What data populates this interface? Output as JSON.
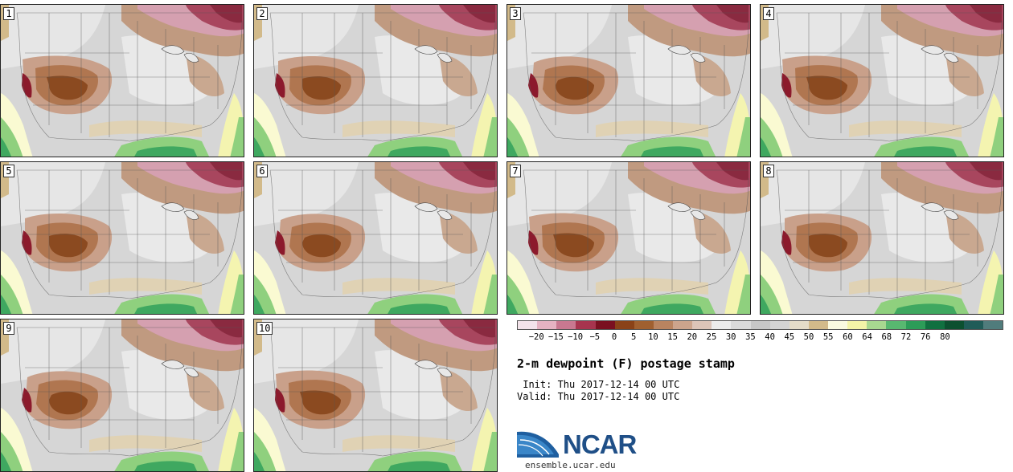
{
  "title": "2-m dewpoint (F) postage stamp",
  "init_line": " Init: Thu 2017-12-14 00 UTC",
  "valid_line": "Valid: Thu 2017-12-14 00 UTC",
  "logo_text": "NCAR",
  "site": "ensemble.ucar.edu",
  "members": [
    "1",
    "2",
    "3",
    "4",
    "5",
    "6",
    "7",
    "8",
    "9",
    "10"
  ],
  "colorbar": {
    "colors": [
      "#f3e3ea",
      "#e5b3c2",
      "#c87890",
      "#a7344e",
      "#7a1020",
      "#8a4218",
      "#a06030",
      "#b98460",
      "#cca48c",
      "#dcc4b8",
      "#ececec",
      "#dadada",
      "#c6c6c6",
      "#d4d4d4",
      "#e4dcc8",
      "#d2ba8a",
      "#fafae0",
      "#f4f4a8",
      "#a8d890",
      "#58b870",
      "#2c9c58",
      "#107040",
      "#0c5030",
      "#205c58",
      "#507c7c"
    ],
    "labels": [
      "−20",
      "−15",
      "−10",
      "−5",
      "0",
      "5",
      "10",
      "15",
      "20",
      "25",
      "30",
      "35",
      "40",
      "45",
      "50",
      "55",
      "60",
      "64",
      "68",
      "72",
      "76",
      "80"
    ]
  }
}
